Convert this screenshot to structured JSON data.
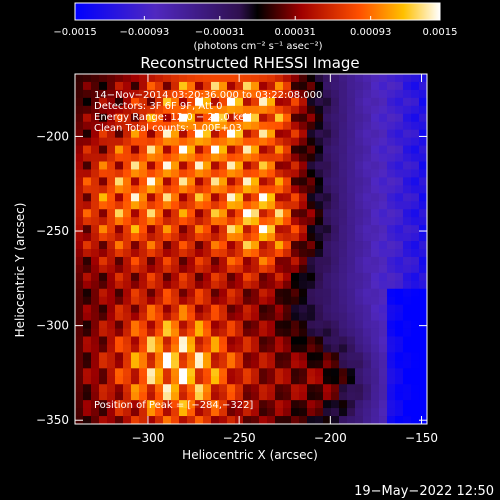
{
  "chart_data": {
    "type": "heatmap",
    "title": "Reconstructed RHESSI Image",
    "xlabel": "Heliocentric X (arcsec)",
    "ylabel": "Heliocentric Y (arcsec)",
    "xlim": [
      -340,
      -147
    ],
    "ylim": [
      -352,
      -167
    ],
    "x_ticks": [
      {
        "value": -300,
        "label": "−300"
      },
      {
        "value": -250,
        "label": "−250"
      },
      {
        "value": -200,
        "label": "−200"
      },
      {
        "value": -150,
        "label": "−150"
      }
    ],
    "y_ticks": [
      {
        "value": -200,
        "label": "−200"
      },
      {
        "value": -250,
        "label": "−250"
      },
      {
        "value": -300,
        "label": "−300"
      },
      {
        "value": -350,
        "label": "−350"
      }
    ],
    "annotations": [
      "14−Nov−2014 03:20:36.000 to 03:22:08.000",
      "Detectors: 3F 6F 9F, Att 0",
      "Energy Range: 12.0 − 25.0 keV",
      "Clean    Total counts: 1.00E+03"
    ],
    "peak_label": "Position of Peak = [−284,−322]",
    "peak": [
      -284,
      -322
    ],
    "colorbar": {
      "range": [
        -0.0015,
        0.0015
      ],
      "tick_labels": [
        "−0.0015",
        "−0.00093",
        "−0.00031",
        "0.00031",
        "0.00093",
        "0.0015"
      ],
      "tick_values": [
        -0.0015,
        -0.00093,
        -0.00031,
        0.00031,
        0.00093,
        0.0015
      ],
      "label": "(photons cm⁻² s⁻¹ asec⁻²)"
    },
    "grid": false
  },
  "footer": {
    "date": "19−May−2022 12:50"
  }
}
